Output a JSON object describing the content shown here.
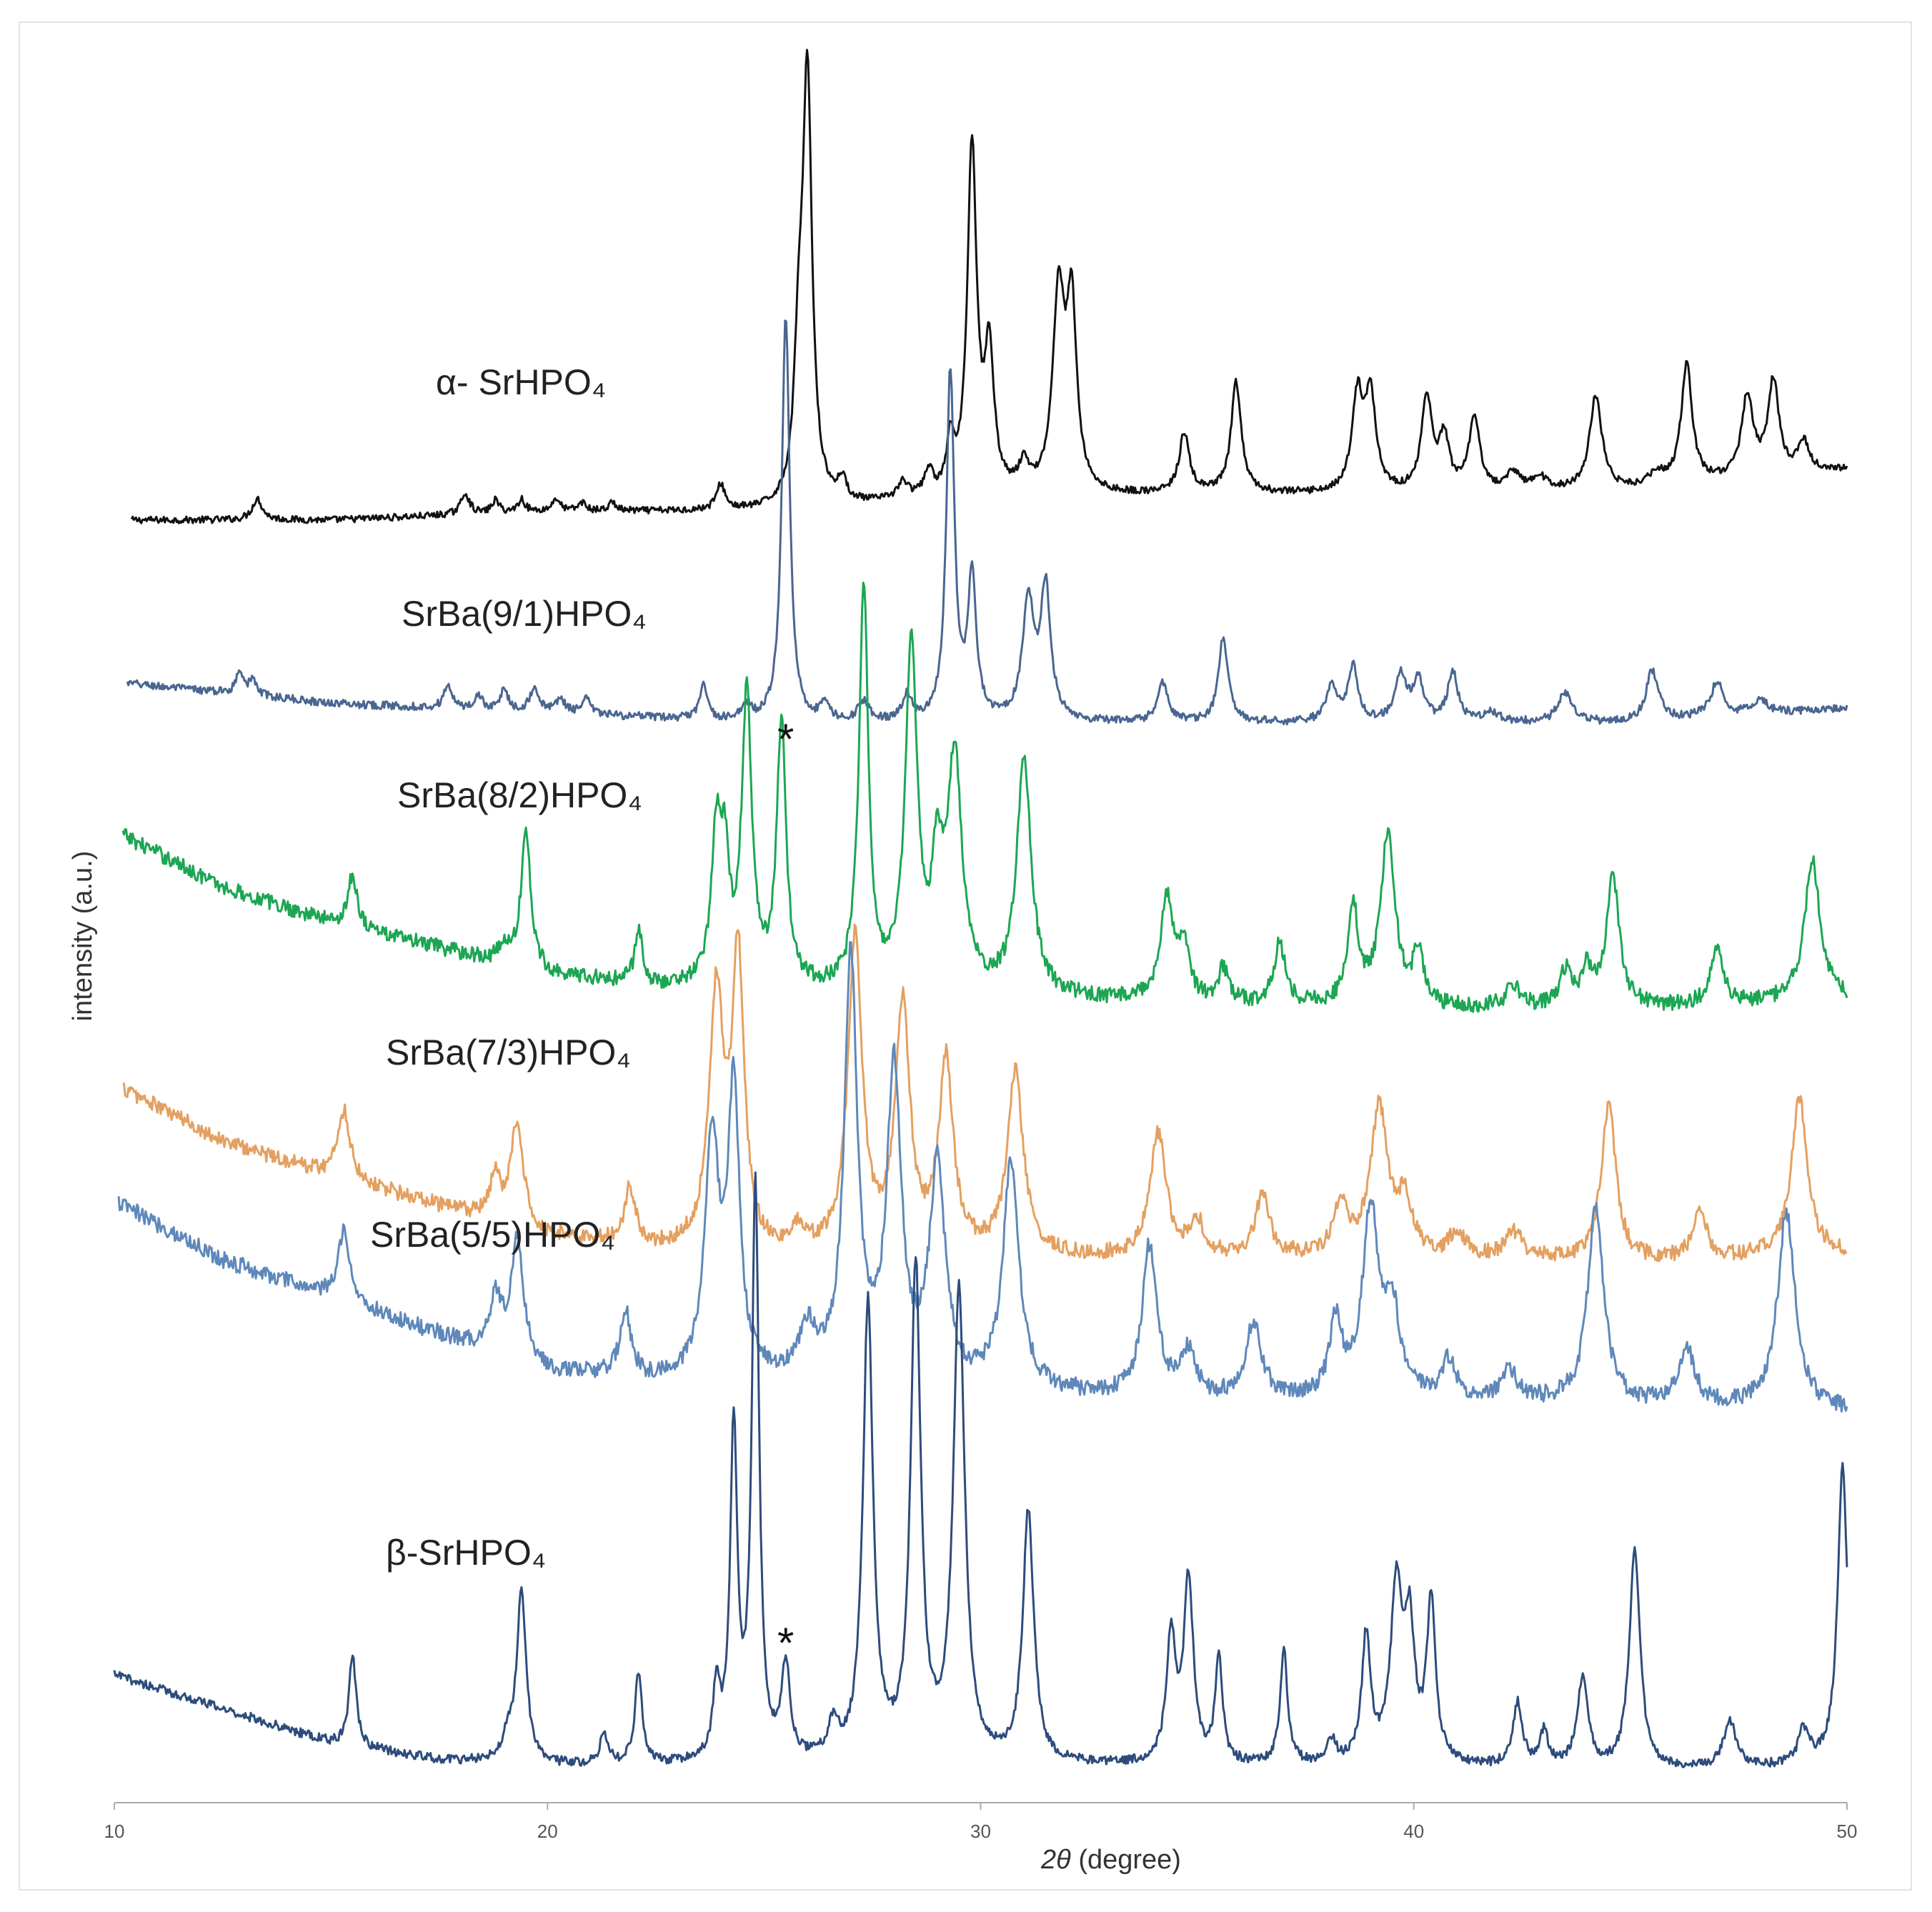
{
  "chart_data": {
    "type": "line",
    "xlabel_symbol": "2θ",
    "xlabel_unit": " (degree)",
    "ylabel": "intensity (a.u.)",
    "xlim": [
      10,
      50
    ],
    "xticks": [
      10,
      20,
      30,
      40,
      50
    ],
    "grid": false,
    "series": [
      {
        "name": "α- SrHPO₄",
        "color": "#111111",
        "baseline": [
          [
            10.4,
            0.0
          ],
          [
            15,
            0.0
          ],
          [
            20,
            0.02
          ],
          [
            25,
            0.02
          ],
          [
            30,
            0.05
          ],
          [
            35,
            0.06
          ],
          [
            40,
            0.06
          ],
          [
            45,
            0.07
          ],
          [
            50,
            0.12
          ]
        ],
        "peaks": [
          [
            13.3,
            0.05,
            0.14
          ],
          [
            18.1,
            0.05,
            0.12
          ],
          [
            18.8,
            0.03,
            0.1
          ],
          [
            19.4,
            0.03,
            0.1
          ],
          [
            20.2,
            0.03,
            0.1
          ],
          [
            20.8,
            0.02,
            0.1
          ],
          [
            21.5,
            0.02,
            0.1
          ],
          [
            24.0,
            0.06,
            0.12
          ],
          [
            25.8,
            0.3,
            0.12
          ],
          [
            26.0,
            1.0,
            0.13
          ],
          [
            26.8,
            0.05,
            0.12
          ],
          [
            28.2,
            0.04,
            0.15
          ],
          [
            28.8,
            0.06,
            0.12
          ],
          [
            29.3,
            0.12,
            0.1
          ],
          [
            29.8,
            0.82,
            0.13
          ],
          [
            30.2,
            0.32,
            0.13
          ],
          [
            31.0,
            0.06,
            0.15
          ],
          [
            31.8,
            0.46,
            0.16
          ],
          [
            32.1,
            0.42,
            0.14
          ],
          [
            34.7,
            0.14,
            0.14
          ],
          [
            35.9,
            0.26,
            0.14
          ],
          [
            38.7,
            0.22,
            0.15
          ],
          [
            39.0,
            0.22,
            0.15
          ],
          [
            40.3,
            0.22,
            0.15
          ],
          [
            40.7,
            0.12,
            0.14
          ],
          [
            41.4,
            0.17,
            0.15
          ],
          [
            42.3,
            0.04,
            0.2
          ],
          [
            42.9,
            0.03,
            0.2
          ],
          [
            44.2,
            0.22,
            0.17
          ],
          [
            45.6,
            0.03,
            0.2
          ],
          [
            46.3,
            0.28,
            0.15
          ],
          [
            47.7,
            0.19,
            0.16
          ],
          [
            48.3,
            0.22,
            0.15
          ],
          [
            49.0,
            0.07,
            0.15
          ]
        ]
      },
      {
        "name": "SrBa(9/1)HPO₄",
        "color": "#4a6690",
        "baseline": [
          [
            10.3,
            0.08
          ],
          [
            15,
            0.04
          ],
          [
            20,
            0.02
          ],
          [
            25,
            0.0
          ],
          [
            30,
            0.0
          ],
          [
            35,
            0.0
          ],
          [
            40,
            0.0
          ],
          [
            45,
            0.0
          ],
          [
            50,
            0.03
          ]
        ],
        "peaks": [
          [
            12.9,
            0.05,
            0.1
          ],
          [
            13.2,
            0.03,
            0.1
          ],
          [
            17.7,
            0.05,
            0.1
          ],
          [
            18.4,
            0.03,
            0.1
          ],
          [
            19.0,
            0.04,
            0.12
          ],
          [
            19.7,
            0.05,
            0.12
          ],
          [
            20.3,
            0.03,
            0.12
          ],
          [
            20.9,
            0.03,
            0.12
          ],
          [
            23.6,
            0.07,
            0.1
          ],
          [
            24.6,
            0.03,
            0.12
          ],
          [
            25.5,
            0.82,
            0.11
          ],
          [
            26.4,
            0.04,
            0.1
          ],
          [
            27.3,
            0.04,
            0.15
          ],
          [
            28.3,
            0.05,
            0.12
          ],
          [
            29.3,
            0.7,
            0.11
          ],
          [
            29.8,
            0.28,
            0.12
          ],
          [
            31.1,
            0.24,
            0.16
          ],
          [
            31.5,
            0.26,
            0.14
          ],
          [
            34.2,
            0.08,
            0.14
          ],
          [
            35.6,
            0.17,
            0.13
          ],
          [
            38.1,
            0.07,
            0.15
          ],
          [
            38.6,
            0.11,
            0.14
          ],
          [
            39.7,
            0.09,
            0.16
          ],
          [
            40.1,
            0.08,
            0.15
          ],
          [
            40.9,
            0.1,
            0.14
          ],
          [
            41.8,
            0.02,
            0.2
          ],
          [
            43.5,
            0.06,
            0.2
          ],
          [
            45.5,
            0.1,
            0.17
          ],
          [
            47.0,
            0.07,
            0.18
          ],
          [
            48.0,
            0.03,
            0.2
          ]
        ]
      },
      {
        "name": "SrBa(8/2)HPO₄",
        "color": "#1ca653",
        "baseline": [
          [
            10.2,
            0.42
          ],
          [
            12.5,
            0.3
          ],
          [
            15,
            0.22
          ],
          [
            17.5,
            0.16
          ],
          [
            20,
            0.1
          ],
          [
            22.5,
            0.07
          ],
          [
            25,
            0.06
          ],
          [
            30,
            0.05
          ],
          [
            35,
            0.03
          ],
          [
            40,
            0.02
          ],
          [
            45,
            0.02
          ],
          [
            50,
            0.04
          ]
        ],
        "peaks": [
          [
            15.5,
            0.12,
            0.13
          ],
          [
            19.0,
            0.04,
            0.12
          ],
          [
            19.5,
            0.32,
            0.13
          ],
          [
            22.1,
            0.13,
            0.1
          ],
          [
            23.9,
            0.34,
            0.14
          ],
          [
            24.1,
            0.24,
            0.12
          ],
          [
            24.6,
            0.66,
            0.14
          ],
          [
            25.4,
            0.6,
            0.13
          ],
          [
            27.3,
            0.92,
            0.13
          ],
          [
            28.4,
            0.8,
            0.16
          ],
          [
            29.4,
            0.52,
            0.2
          ],
          [
            29.0,
            0.25,
            0.15
          ],
          [
            31.0,
            0.54,
            0.2
          ],
          [
            34.3,
            0.24,
            0.18
          ],
          [
            34.7,
            0.12,
            0.15
          ],
          [
            35.6,
            0.08,
            0.14
          ],
          [
            36.9,
            0.14,
            0.16
          ],
          [
            38.6,
            0.22,
            0.15
          ],
          [
            39.4,
            0.4,
            0.2
          ],
          [
            40.1,
            0.12,
            0.14
          ],
          [
            42.3,
            0.05,
            0.2
          ],
          [
            43.5,
            0.08,
            0.16
          ],
          [
            44.0,
            0.08,
            0.16
          ],
          [
            44.6,
            0.3,
            0.18
          ],
          [
            47.0,
            0.12,
            0.18
          ],
          [
            49.2,
            0.32,
            0.22
          ]
        ]
      },
      {
        "name": "SrBa(7/3)HPO₄",
        "color": "#e4a060",
        "baseline": [
          [
            10.2,
            0.42
          ],
          [
            12.5,
            0.3
          ],
          [
            15,
            0.22
          ],
          [
            17.5,
            0.15
          ],
          [
            20,
            0.08
          ],
          [
            22.5,
            0.05
          ],
          [
            25,
            0.03
          ],
          [
            30,
            0.03
          ],
          [
            35,
            0.03
          ],
          [
            40,
            0.03
          ],
          [
            45,
            0.02
          ],
          [
            50,
            0.04
          ]
        ],
        "peaks": [
          [
            15.3,
            0.16,
            0.17
          ],
          [
            18.8,
            0.1,
            0.14
          ],
          [
            19.3,
            0.24,
            0.17
          ],
          [
            21.9,
            0.13,
            0.15
          ],
          [
            23.9,
            0.58,
            0.2
          ],
          [
            24.4,
            0.66,
            0.17
          ],
          [
            25.8,
            0.05,
            0.2
          ],
          [
            27.1,
            0.72,
            0.2
          ],
          [
            28.2,
            0.56,
            0.2
          ],
          [
            29.2,
            0.44,
            0.2
          ],
          [
            30.8,
            0.42,
            0.22
          ],
          [
            34.1,
            0.28,
            0.22
          ],
          [
            35.0,
            0.08,
            0.18
          ],
          [
            36.5,
            0.14,
            0.2
          ],
          [
            38.3,
            0.12,
            0.18
          ],
          [
            39.2,
            0.34,
            0.25
          ],
          [
            39.8,
            0.12,
            0.18
          ],
          [
            41.0,
            0.06,
            0.2
          ],
          [
            42.3,
            0.06,
            0.25
          ],
          [
            44.5,
            0.36,
            0.2
          ],
          [
            46.6,
            0.1,
            0.2
          ],
          [
            48.9,
            0.36,
            0.22
          ]
        ]
      },
      {
        "name": "SrBa(5/5)HPO₄",
        "color": "#5f88ba",
        "baseline": [
          [
            10.1,
            0.46
          ],
          [
            12.5,
            0.34
          ],
          [
            15,
            0.26
          ],
          [
            17.5,
            0.18
          ],
          [
            20,
            0.1
          ],
          [
            22.5,
            0.08
          ],
          [
            25,
            0.08
          ],
          [
            30,
            0.06
          ],
          [
            35,
            0.04
          ],
          [
            40,
            0.04
          ],
          [
            45,
            0.03
          ],
          [
            50,
            0.02
          ]
        ],
        "peaks": [
          [
            15.3,
            0.16,
            0.15
          ],
          [
            18.8,
            0.12,
            0.16
          ],
          [
            19.3,
            0.26,
            0.17
          ],
          [
            21.8,
            0.14,
            0.15
          ],
          [
            23.8,
            0.5,
            0.2
          ],
          [
            24.3,
            0.6,
            0.16
          ],
          [
            26.0,
            0.1,
            0.25
          ],
          [
            27.0,
            0.9,
            0.18
          ],
          [
            28.0,
            0.66,
            0.2
          ],
          [
            29.0,
            0.46,
            0.22
          ],
          [
            30.7,
            0.48,
            0.22
          ],
          [
            33.9,
            0.32,
            0.2
          ],
          [
            34.8,
            0.1,
            0.2
          ],
          [
            36.3,
            0.16,
            0.22
          ],
          [
            38.2,
            0.16,
            0.17
          ],
          [
            39.0,
            0.4,
            0.22
          ],
          [
            39.5,
            0.18,
            0.2
          ],
          [
            40.8,
            0.08,
            0.2
          ],
          [
            42.2,
            0.06,
            0.25
          ],
          [
            44.2,
            0.42,
            0.22
          ],
          [
            46.3,
            0.12,
            0.22
          ],
          [
            48.6,
            0.42,
            0.24
          ]
        ]
      },
      {
        "name": "β-SrHPO₄",
        "color": "#2d4c7c",
        "baseline": [
          [
            10.0,
            0.18
          ],
          [
            12.5,
            0.12
          ],
          [
            15,
            0.06
          ],
          [
            17.5,
            0.03
          ],
          [
            20,
            0.02
          ],
          [
            22.5,
            0.02
          ],
          [
            25,
            0.02
          ],
          [
            30,
            0.02
          ],
          [
            35,
            0.02
          ],
          [
            40,
            0.02
          ],
          [
            45,
            0.01
          ],
          [
            50,
            0.02
          ]
        ],
        "peaks": [
          [
            15.5,
            0.16,
            0.1
          ],
          [
            19.1,
            0.04,
            0.14
          ],
          [
            19.4,
            0.3,
            0.13
          ],
          [
            21.3,
            0.06,
            0.1
          ],
          [
            22.1,
            0.16,
            0.1
          ],
          [
            23.9,
            0.12,
            0.1
          ],
          [
            24.3,
            0.58,
            0.1
          ],
          [
            24.8,
            1.0,
            0.1
          ],
          [
            25.5,
            0.16,
            0.12
          ],
          [
            26.6,
            0.06,
            0.15
          ],
          [
            27.4,
            0.8,
            0.14
          ],
          [
            28.5,
            0.86,
            0.14
          ],
          [
            29.5,
            0.82,
            0.16
          ],
          [
            31.1,
            0.44,
            0.15
          ],
          [
            34.4,
            0.22,
            0.13
          ],
          [
            34.8,
            0.32,
            0.13
          ],
          [
            35.5,
            0.18,
            0.1
          ],
          [
            37.0,
            0.2,
            0.1
          ],
          [
            38.1,
            0.04,
            0.12
          ],
          [
            38.9,
            0.22,
            0.12
          ],
          [
            39.6,
            0.3,
            0.16
          ],
          [
            39.9,
            0.22,
            0.14
          ],
          [
            40.4,
            0.28,
            0.12
          ],
          [
            42.4,
            0.11,
            0.13
          ],
          [
            43.0,
            0.06,
            0.12
          ],
          [
            43.9,
            0.16,
            0.15
          ],
          [
            45.1,
            0.38,
            0.15
          ],
          [
            47.3,
            0.08,
            0.18
          ],
          [
            49.0,
            0.06,
            0.15
          ],
          [
            49.9,
            0.52,
            0.14
          ]
        ]
      }
    ],
    "annotations": [
      {
        "text": "*",
        "x": 25.5,
        "near_series": "SrBa(9/1)HPO₄"
      },
      {
        "text": "*",
        "x": 25.5,
        "near_series": "β-SrHPO₄"
      }
    ]
  }
}
